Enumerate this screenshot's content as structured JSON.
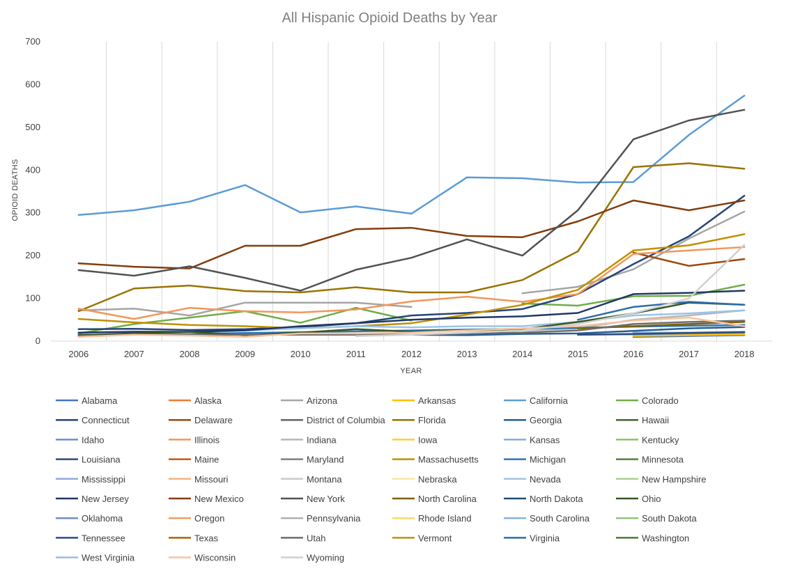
{
  "chart_data": {
    "type": "line",
    "title": "All Hispanic Opioid Deaths by Year",
    "xlabel": "YEAR",
    "ylabel": "OPIOID DEATHS",
    "x": [
      "2006",
      "2007",
      "2008",
      "2009",
      "2010",
      "2011",
      "2012",
      "2013",
      "2014",
      "2015",
      "2016",
      "2017",
      "2018"
    ],
    "ylim": [
      0,
      700
    ],
    "yticks": [
      0,
      100,
      200,
      300,
      400,
      500,
      600,
      700
    ],
    "grid": "vertical",
    "legend_position": "bottom",
    "series": [
      {
        "name": "Alabama",
        "color": "#4472c4",
        "values": [
          null,
          null,
          null,
          null,
          null,
          null,
          null,
          null,
          null,
          null,
          10,
          12,
          14
        ]
      },
      {
        "name": "Alaska",
        "color": "#ed7d31",
        "values": [
          null,
          null,
          null,
          null,
          null,
          null,
          null,
          null,
          null,
          null,
          null,
          null,
          null
        ]
      },
      {
        "name": "Arizona",
        "color": "#a5a5a5",
        "values": [
          72,
          76,
          60,
          90,
          90,
          90,
          80,
          null,
          112,
          127,
          168,
          240,
          303
        ]
      },
      {
        "name": "Arkansas",
        "color": "#ffc000",
        "values": [
          null,
          null,
          null,
          null,
          null,
          null,
          null,
          null,
          null,
          null,
          12,
          14,
          16
        ]
      },
      {
        "name": "California",
        "color": "#5b9bd5",
        "values": [
          295,
          306,
          326,
          365,
          301,
          315,
          298,
          383,
          381,
          371,
          372,
          482,
          574
        ]
      },
      {
        "name": "Colorado",
        "color": "#70ad47",
        "values": [
          18,
          40,
          55,
          70,
          43,
          78,
          48,
          null,
          88,
          83,
          105,
          106,
          132
        ]
      },
      {
        "name": "Connecticut",
        "color": "#264478",
        "values": [
          28,
          29,
          26,
          28,
          33,
          42,
          60,
          66,
          75,
          110,
          180,
          245,
          340
        ]
      },
      {
        "name": "Delaware",
        "color": "#9e480e",
        "values": [
          null,
          null,
          null,
          null,
          null,
          null,
          null,
          null,
          null,
          null,
          207,
          176,
          192
        ]
      },
      {
        "name": "District of Columbia",
        "color": "#636363",
        "values": [
          null,
          null,
          null,
          null,
          null,
          null,
          null,
          null,
          null,
          null,
          null,
          null,
          null
        ]
      },
      {
        "name": "Florida",
        "color": "#997300",
        "values": [
          70,
          123,
          130,
          117,
          114,
          126,
          114,
          114,
          143,
          210,
          407,
          416,
          403
        ]
      },
      {
        "name": "Georgia",
        "color": "#255e91",
        "values": [
          null,
          null,
          null,
          null,
          null,
          null,
          15,
          14,
          17,
          18,
          24,
          30,
          33
        ]
      },
      {
        "name": "Hawaii",
        "color": "#43682b",
        "values": [
          null,
          null,
          null,
          null,
          null,
          null,
          null,
          null,
          null,
          null,
          null,
          null,
          null
        ]
      },
      {
        "name": "Idaho",
        "color": "#698ed0",
        "values": [
          null,
          null,
          null,
          null,
          null,
          null,
          null,
          null,
          null,
          15,
          16,
          18,
          20
        ]
      },
      {
        "name": "Illinois",
        "color": "#f1975a",
        "values": [
          76,
          52,
          78,
          70,
          67,
          74,
          93,
          104,
          92,
          110,
          204,
          212,
          220
        ]
      },
      {
        "name": "Indiana",
        "color": "#b7b7b7",
        "values": [
          null,
          null,
          null,
          null,
          null,
          null,
          null,
          null,
          25,
          30,
          50,
          60,
          72
        ]
      },
      {
        "name": "Iowa",
        "color": "#ffcd33",
        "values": [
          null,
          null,
          null,
          null,
          null,
          null,
          null,
          null,
          null,
          null,
          null,
          null,
          null
        ]
      },
      {
        "name": "Kansas",
        "color": "#7cafdd",
        "values": [
          null,
          null,
          null,
          null,
          null,
          null,
          null,
          null,
          null,
          null,
          20,
          20,
          22
        ]
      },
      {
        "name": "Kentucky",
        "color": "#8cc168",
        "values": [
          null,
          null,
          null,
          null,
          null,
          null,
          null,
          null,
          null,
          null,
          null,
          null,
          null
        ]
      },
      {
        "name": "Louisiana",
        "color": "#2f4b7c",
        "values": [
          null,
          null,
          null,
          null,
          null,
          null,
          null,
          null,
          null,
          15,
          17,
          19,
          21
        ]
      },
      {
        "name": "Maine",
        "color": "#c55a11",
        "values": [
          null,
          null,
          null,
          null,
          null,
          null,
          null,
          null,
          null,
          null,
          null,
          null,
          null
        ]
      },
      {
        "name": "Maryland",
        "color": "#7f7f7f",
        "values": [
          null,
          null,
          null,
          null,
          null,
          null,
          null,
          null,
          null,
          null,
          null,
          null,
          null
        ]
      },
      {
        "name": "Massachusetts",
        "color": "#bf9000",
        "values": [
          52,
          44,
          38,
          35,
          30,
          35,
          42,
          62,
          85,
          120,
          212,
          224,
          250
        ]
      },
      {
        "name": "Michigan",
        "color": "#2e75b6",
        "values": [
          15,
          16,
          17,
          19,
          21,
          23,
          25,
          27,
          29,
          31,
          34,
          36,
          38
        ]
      },
      {
        "name": "Minnesota",
        "color": "#548235",
        "values": [
          null,
          null,
          null,
          null,
          null,
          null,
          null,
          null,
          null,
          null,
          null,
          null,
          null
        ]
      },
      {
        "name": "Mississippi",
        "color": "#8faadc",
        "values": [
          null,
          null,
          null,
          null,
          null,
          null,
          null,
          null,
          null,
          null,
          null,
          null,
          null
        ]
      },
      {
        "name": "Missouri",
        "color": "#f4b183",
        "values": [
          null,
          null,
          null,
          null,
          null,
          null,
          null,
          null,
          null,
          null,
          null,
          null,
          null
        ]
      },
      {
        "name": "Montana",
        "color": "#c9c9c9",
        "values": [
          null,
          null,
          null,
          null,
          null,
          null,
          null,
          null,
          null,
          null,
          null,
          null,
          null
        ]
      },
      {
        "name": "Nebraska",
        "color": "#ffe699",
        "values": [
          null,
          null,
          null,
          null,
          null,
          null,
          null,
          null,
          null,
          null,
          null,
          null,
          null
        ]
      },
      {
        "name": "Nevada",
        "color": "#9dc3e6",
        "values": [
          20,
          22,
          20,
          25,
          30,
          35,
          32,
          35,
          35,
          45,
          60,
          65,
          72
        ]
      },
      {
        "name": "New Hampshire",
        "color": "#a9d18e",
        "values": [
          null,
          null,
          null,
          null,
          null,
          null,
          null,
          null,
          null,
          null,
          null,
          null,
          null
        ]
      },
      {
        "name": "New Jersey",
        "color": "#1f3864",
        "values": [
          20,
          22,
          22,
          25,
          35,
          42,
          50,
          55,
          58,
          66,
          110,
          113,
          118
        ]
      },
      {
        "name": "New Mexico",
        "color": "#843c0c",
        "values": [
          182,
          174,
          170,
          223,
          223,
          262,
          265,
          246,
          243,
          280,
          329,
          306,
          329
        ]
      },
      {
        "name": "New York",
        "color": "#525252",
        "values": [
          166,
          153,
          175,
          148,
          118,
          167,
          195,
          238,
          200,
          306,
          472,
          516,
          541
        ]
      },
      {
        "name": "North Carolina",
        "color": "#7f6000",
        "values": [
          null,
          null,
          null,
          null,
          null,
          null,
          null,
          null,
          null,
          30,
          35,
          40,
          45
        ]
      },
      {
        "name": "North Dakota",
        "color": "#1f4e79",
        "values": [
          null,
          null,
          null,
          null,
          null,
          null,
          null,
          null,
          null,
          null,
          null,
          null,
          null
        ]
      },
      {
        "name": "Ohio",
        "color": "#375623",
        "values": [
          14,
          18,
          22,
          14,
          20,
          28,
          22,
          25,
          28,
          45,
          65,
          90,
          85
        ]
      },
      {
        "name": "Oklahoma",
        "color": "#6f8ec4",
        "values": [
          null,
          null,
          null,
          null,
          null,
          null,
          null,
          null,
          null,
          null,
          null,
          null,
          null
        ]
      },
      {
        "name": "Oregon",
        "color": "#f19e5b",
        "values": [
          null,
          null,
          null,
          null,
          null,
          null,
          null,
          null,
          null,
          null,
          null,
          null,
          null
        ]
      },
      {
        "name": "Pennsylvania",
        "color": "#b0b0b0",
        "values": [
          null,
          null,
          null,
          null,
          null,
          null,
          null,
          null,
          null,
          null,
          null,
          null,
          null
        ]
      },
      {
        "name": "Rhode Island",
        "color": "#ffd966",
        "values": [
          null,
          null,
          null,
          null,
          null,
          null,
          null,
          null,
          null,
          null,
          null,
          null,
          null
        ]
      },
      {
        "name": "South Carolina",
        "color": "#84b4df",
        "values": [
          null,
          null,
          null,
          null,
          null,
          null,
          null,
          null,
          null,
          null,
          null,
          null,
          null
        ]
      },
      {
        "name": "South Dakota",
        "color": "#93c47d",
        "values": [
          null,
          null,
          null,
          null,
          null,
          null,
          null,
          null,
          null,
          null,
          null,
          null,
          null
        ]
      },
      {
        "name": "Tennessee",
        "color": "#2e4a87",
        "values": [
          null,
          null,
          null,
          null,
          null,
          null,
          null,
          null,
          null,
          null,
          null,
          null,
          null
        ]
      },
      {
        "name": "Texas",
        "color": "#b45f06",
        "values": [
          null,
          null,
          null,
          null,
          null,
          null,
          null,
          null,
          null,
          null,
          null,
          null,
          null
        ]
      },
      {
        "name": "Utah",
        "color": "#6d6d6d",
        "values": [
          12,
          15,
          15,
          15,
          15,
          15,
          15,
          18,
          20,
          25,
          40,
          45,
          48
        ]
      },
      {
        "name": "Vermont",
        "color": "#b7950b",
        "values": [
          null,
          null,
          null,
          null,
          null,
          null,
          null,
          null,
          null,
          null,
          null,
          null,
          null
        ]
      },
      {
        "name": "Virginia",
        "color": "#2f6ea8",
        "values": [
          null,
          null,
          null,
          null,
          null,
          null,
          null,
          null,
          null,
          50,
          80,
          92,
          85
        ]
      },
      {
        "name": "Washington",
        "color": "#4e7a34",
        "values": [
          null,
          null,
          null,
          null,
          null,
          null,
          null,
          null,
          null,
          null,
          null,
          null,
          null
        ]
      },
      {
        "name": "West Virginia",
        "color": "#a2b9e0",
        "values": [
          null,
          null,
          null,
          null,
          null,
          null,
          null,
          null,
          null,
          null,
          null,
          null,
          null
        ]
      },
      {
        "name": "Wisconsin",
        "color": "#f8c39e",
        "values": [
          10,
          15,
          13,
          10,
          18,
          18,
          20,
          25,
          30,
          35,
          48,
          55,
          35
        ]
      },
      {
        "name": "Wyoming",
        "color": "#d0d0d0",
        "values": [
          null,
          null,
          null,
          null,
          null,
          12,
          15,
          20,
          25,
          40,
          65,
          100,
          225
        ]
      }
    ]
  }
}
